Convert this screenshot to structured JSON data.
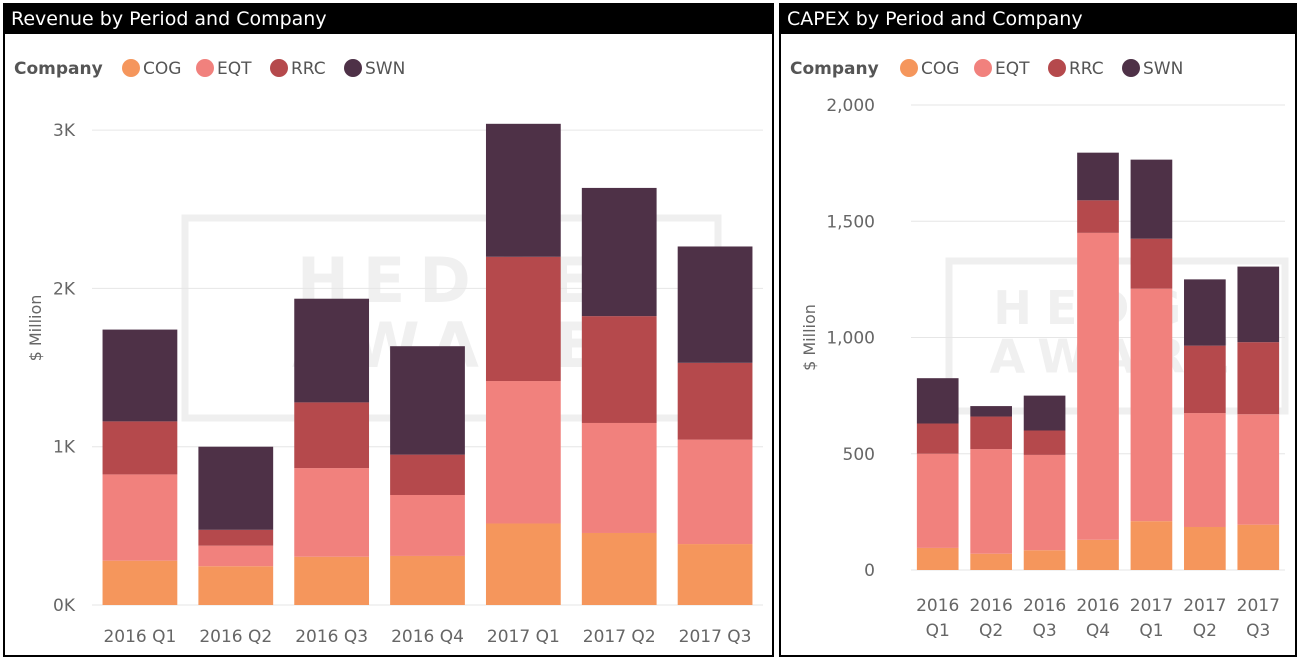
{
  "colors": {
    "COG": "#F5965C",
    "EQT": "#F1817D",
    "RRC": "#B5494C",
    "SWN": "#4E3147",
    "grid": "#e6e6e6",
    "watermark": "#efefef"
  },
  "watermark": {
    "line1": "HEDGE",
    "line2": "AWARE"
  },
  "left": {
    "title": "Revenue by Period and Company",
    "legend_title": "Company",
    "legend": [
      "COG",
      "EQT",
      "RRC",
      "SWN"
    ],
    "yaxis_title": "$ Million",
    "yticks": [
      "0K",
      "1K",
      "2K",
      "3K"
    ],
    "xticks": [
      "2016 Q1",
      "2016 Q2",
      "2016 Q3",
      "2016 Q4",
      "2017 Q1",
      "2017 Q2",
      "2017 Q3"
    ]
  },
  "right": {
    "title": "CAPEX by Period and Company",
    "legend_title": "Company",
    "legend": [
      "COG",
      "EQT",
      "RRC",
      "SWN"
    ],
    "yaxis_title": "$ Million",
    "yticks": [
      "0",
      "500",
      "1,000",
      "1,500",
      "2,000"
    ],
    "xticks_line1": [
      "2016",
      "2016",
      "2016",
      "2016",
      "2017",
      "2017",
      "2017"
    ],
    "xticks_line2": [
      "Q1",
      "Q2",
      "Q3",
      "Q4",
      "Q1",
      "Q2",
      "Q3"
    ]
  },
  "chart_data": [
    {
      "type": "bar",
      "stacked": true,
      "title": "Revenue by Period and Company",
      "ylabel": "$ Million",
      "categories": [
        "2016 Q1",
        "2016 Q2",
        "2016 Q3",
        "2016 Q4",
        "2017 Q1",
        "2017 Q2",
        "2017 Q3"
      ],
      "series": [
        {
          "name": "COG",
          "values": [
            280,
            245,
            305,
            310,
            515,
            455,
            385
          ]
        },
        {
          "name": "EQT",
          "values": [
            545,
            130,
            560,
            385,
            900,
            695,
            660
          ]
        },
        {
          "name": "RRC",
          "values": [
            335,
            100,
            415,
            255,
            785,
            675,
            485
          ]
        },
        {
          "name": "SWN",
          "values": [
            580,
            525,
            655,
            685,
            840,
            810,
            735
          ]
        }
      ],
      "ylim": [
        0,
        3500
      ],
      "yticks": [
        0,
        1000,
        2000,
        3000
      ],
      "legend_position": "top-left",
      "grid": true
    },
    {
      "type": "bar",
      "stacked": true,
      "title": "CAPEX by Period and Company",
      "ylabel": "$ Million",
      "categories": [
        "2016 Q1",
        "2016 Q2",
        "2016 Q3",
        "2016 Q4",
        "2017 Q1",
        "2017 Q2",
        "2017 Q3"
      ],
      "series": [
        {
          "name": "COG",
          "values": [
            95,
            70,
            85,
            130,
            210,
            185,
            195
          ]
        },
        {
          "name": "EQT",
          "values": [
            405,
            450,
            410,
            1320,
            1000,
            490,
            475
          ]
        },
        {
          "name": "RRC",
          "values": [
            130,
            140,
            105,
            140,
            215,
            290,
            310
          ]
        },
        {
          "name": "SWN",
          "values": [
            195,
            45,
            150,
            205,
            340,
            285,
            325
          ]
        }
      ],
      "ylim": [
        0,
        2000
      ],
      "yticks": [
        0,
        500,
        1000,
        1500,
        2000
      ],
      "legend_position": "top-left",
      "grid": true
    }
  ]
}
